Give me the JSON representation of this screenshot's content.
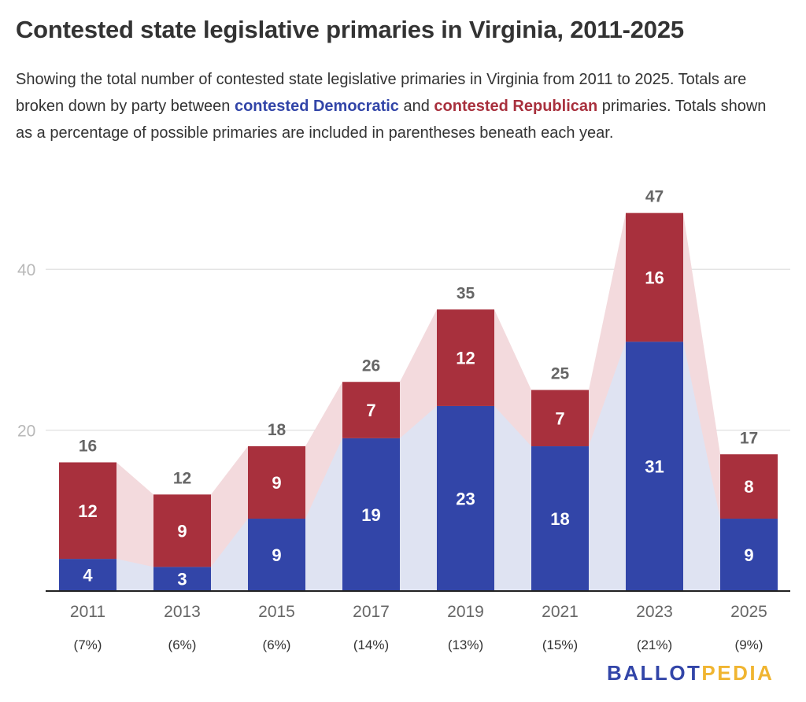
{
  "title": "Contested state legislative primaries in Virginia, 2011-2025",
  "subtitle": {
    "part1": "Showing the total number of contested state legislative primaries in Virginia from 2011 to 2025. Totals are broken down by party between ",
    "dem_text": "contested Democratic",
    "part2": " and ",
    "rep_text": "contested Republican",
    "part3": " primaries. Totals shown as a percentage of possible primaries are included in parentheses beneath each year."
  },
  "colors": {
    "democratic": "#3245a8",
    "republican": "#a8303d",
    "dem_area": "#dfe3f2",
    "rep_area": "#f3dadd",
    "brand_blue": "#3245a8",
    "brand_gold": "#f0b531"
  },
  "chart_data": {
    "type": "bar",
    "stacked": true,
    "categories": [
      "2011",
      "2013",
      "2015",
      "2017",
      "2019",
      "2021",
      "2023",
      "2025"
    ],
    "percent_labels": [
      "(7%)",
      "(6%)",
      "(6%)",
      "(14%)",
      "(13%)",
      "(15%)",
      "(21%)",
      "(9%)"
    ],
    "series": [
      {
        "values": [
          4,
          3,
          9,
          19,
          23,
          18,
          31,
          9
        ]
      },
      {
        "values": [
          12,
          9,
          9,
          7,
          12,
          7,
          16,
          8
        ]
      }
    ],
    "totals": [
      16,
      12,
      18,
      26,
      35,
      25,
      47,
      17
    ],
    "yticks": [
      20,
      40
    ],
    "ylim": [
      0,
      47
    ],
    "grid": true
  },
  "brand": {
    "part1": "BALLOT",
    "part2": "PEDIA"
  }
}
